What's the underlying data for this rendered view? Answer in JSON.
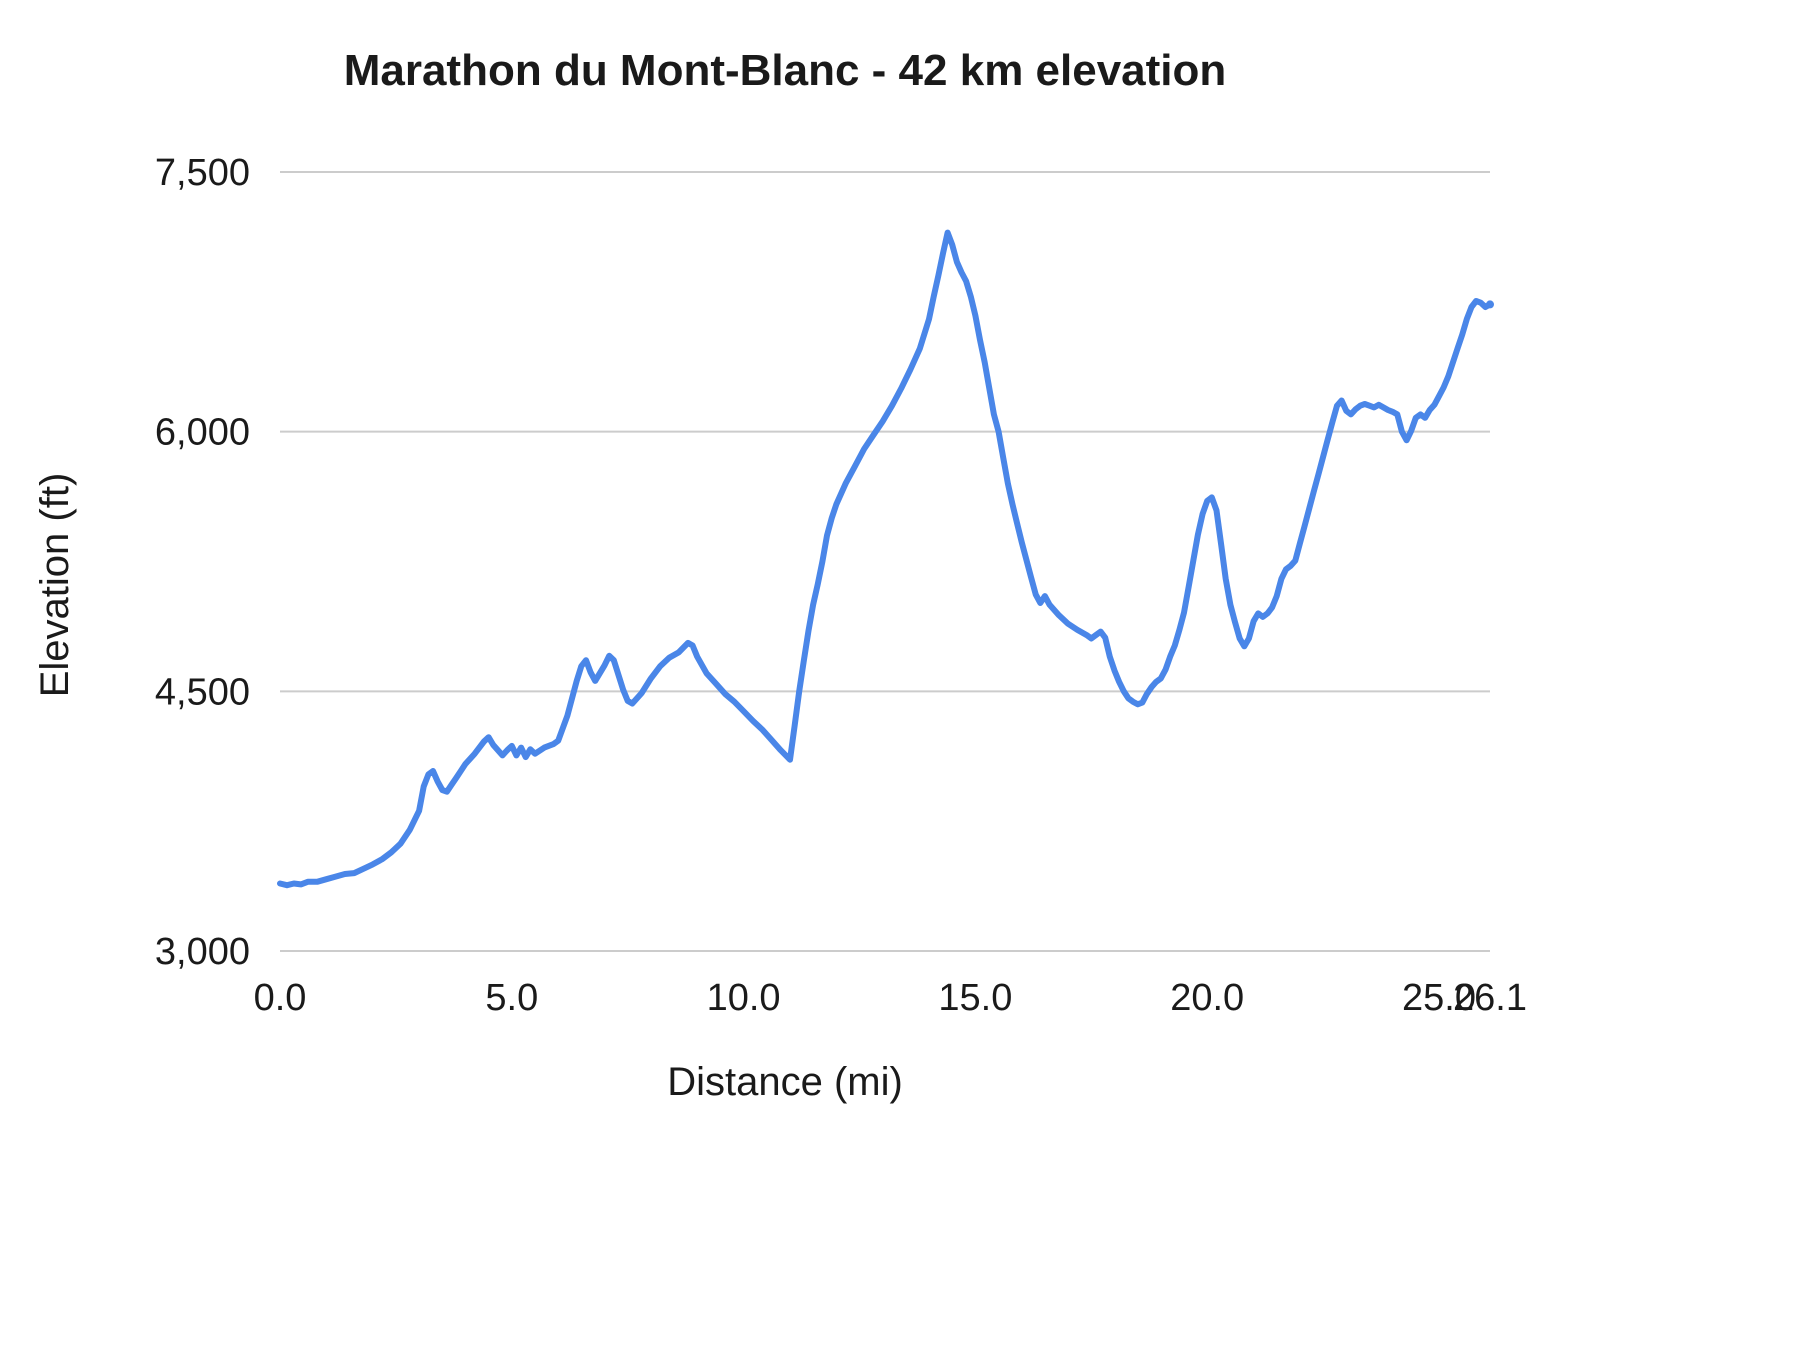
{
  "page": {
    "background_color": "#ffffff",
    "text_color": "#1a1a1a"
  },
  "chart_data": {
    "type": "line",
    "title": "Marathon du Mont-Blanc - 42 km elevation",
    "xlabel": "Distance (mi)",
    "ylabel": "Elevation (ft)",
    "xlim": [
      0,
      26.1
    ],
    "ylim": [
      3000,
      7500
    ],
    "grid": true,
    "legend_position": "none",
    "line_color": "#4a86e8",
    "grid_color": "#cccccc",
    "x_ticks": [
      {
        "value": 0,
        "label": "0.0"
      },
      {
        "value": 5,
        "label": "5.0"
      },
      {
        "value": 10,
        "label": "10.0"
      },
      {
        "value": 15,
        "label": "15.0"
      },
      {
        "value": 20,
        "label": "20.0"
      },
      {
        "value": 25,
        "label": "25.0"
      },
      {
        "value": 26.1,
        "label": "26.1"
      }
    ],
    "y_ticks": [
      {
        "value": 3000,
        "label": "3,000"
      },
      {
        "value": 4500,
        "label": "4,500"
      },
      {
        "value": 6000,
        "label": "6,000"
      },
      {
        "value": 7500,
        "label": "7,500"
      }
    ],
    "series": [
      {
        "name": "Elevation (ft)",
        "points": [
          [
            0,
            3390
          ],
          [
            0.15,
            3380
          ],
          [
            0.3,
            3390
          ],
          [
            0.45,
            3385
          ],
          [
            0.6,
            3400
          ],
          [
            0.8,
            3400
          ],
          [
            1,
            3415
          ],
          [
            1.2,
            3430
          ],
          [
            1.4,
            3445
          ],
          [
            1.6,
            3450
          ],
          [
            1.8,
            3475
          ],
          [
            2,
            3500
          ],
          [
            2.2,
            3530
          ],
          [
            2.4,
            3570
          ],
          [
            2.6,
            3620
          ],
          [
            2.8,
            3700
          ],
          [
            3,
            3810
          ],
          [
            3.1,
            3950
          ],
          [
            3.2,
            4020
          ],
          [
            3.3,
            4040
          ],
          [
            3.4,
            3980
          ],
          [
            3.5,
            3930
          ],
          [
            3.6,
            3920
          ],
          [
            3.7,
            3960
          ],
          [
            3.8,
            4000
          ],
          [
            3.9,
            4040
          ],
          [
            4,
            4080
          ],
          [
            4.2,
            4140
          ],
          [
            4.4,
            4210
          ],
          [
            4.5,
            4235
          ],
          [
            4.6,
            4190
          ],
          [
            4.8,
            4130
          ],
          [
            4.9,
            4160
          ],
          [
            5,
            4185
          ],
          [
            5.1,
            4130
          ],
          [
            5.2,
            4175
          ],
          [
            5.3,
            4120
          ],
          [
            5.4,
            4165
          ],
          [
            5.5,
            4140
          ],
          [
            5.7,
            4175
          ],
          [
            5.9,
            4195
          ],
          [
            6,
            4215
          ],
          [
            6.2,
            4360
          ],
          [
            6.4,
            4560
          ],
          [
            6.5,
            4645
          ],
          [
            6.6,
            4680
          ],
          [
            6.7,
            4610
          ],
          [
            6.8,
            4560
          ],
          [
            7,
            4650
          ],
          [
            7.1,
            4705
          ],
          [
            7.2,
            4680
          ],
          [
            7.4,
            4510
          ],
          [
            7.5,
            4445
          ],
          [
            7.6,
            4430
          ],
          [
            7.8,
            4490
          ],
          [
            8,
            4575
          ],
          [
            8.2,
            4645
          ],
          [
            8.4,
            4695
          ],
          [
            8.6,
            4725
          ],
          [
            8.8,
            4780
          ],
          [
            8.9,
            4765
          ],
          [
            9,
            4700
          ],
          [
            9.2,
            4605
          ],
          [
            9.4,
            4545
          ],
          [
            9.6,
            4485
          ],
          [
            9.8,
            4440
          ],
          [
            10,
            4385
          ],
          [
            10.2,
            4330
          ],
          [
            10.4,
            4280
          ],
          [
            10.6,
            4220
          ],
          [
            10.8,
            4160
          ],
          [
            11,
            4105
          ],
          [
            11.1,
            4300
          ],
          [
            11.2,
            4500
          ],
          [
            11.3,
            4680
          ],
          [
            11.4,
            4850
          ],
          [
            11.5,
            5000
          ],
          [
            11.6,
            5120
          ],
          [
            11.7,
            5250
          ],
          [
            11.8,
            5400
          ],
          [
            11.9,
            5500
          ],
          [
            12,
            5580
          ],
          [
            12.2,
            5700
          ],
          [
            12.4,
            5800
          ],
          [
            12.6,
            5900
          ],
          [
            12.8,
            5980
          ],
          [
            13,
            6060
          ],
          [
            13.2,
            6150
          ],
          [
            13.4,
            6250
          ],
          [
            13.6,
            6360
          ],
          [
            13.8,
            6480
          ],
          [
            14,
            6650
          ],
          [
            14.1,
            6780
          ],
          [
            14.2,
            6900
          ],
          [
            14.3,
            7030
          ],
          [
            14.4,
            7150
          ],
          [
            14.5,
            7080
          ],
          [
            14.6,
            6980
          ],
          [
            14.7,
            6920
          ],
          [
            14.8,
            6870
          ],
          [
            14.9,
            6780
          ],
          [
            15,
            6670
          ],
          [
            15.1,
            6530
          ],
          [
            15.2,
            6400
          ],
          [
            15.3,
            6250
          ],
          [
            15.4,
            6100
          ],
          [
            15.5,
            6000
          ],
          [
            15.6,
            5850
          ],
          [
            15.7,
            5700
          ],
          [
            15.8,
            5580
          ],
          [
            15.9,
            5470
          ],
          [
            16,
            5360
          ],
          [
            16.1,
            5260
          ],
          [
            16.2,
            5160
          ],
          [
            16.3,
            5060
          ],
          [
            16.4,
            5010
          ],
          [
            16.5,
            5050
          ],
          [
            16.6,
            5000
          ],
          [
            16.8,
            4940
          ],
          [
            17,
            4890
          ],
          [
            17.2,
            4855
          ],
          [
            17.4,
            4825
          ],
          [
            17.5,
            4805
          ],
          [
            17.6,
            4825
          ],
          [
            17.7,
            4845
          ],
          [
            17.8,
            4810
          ],
          [
            17.9,
            4700
          ],
          [
            18,
            4620
          ],
          [
            18.1,
            4555
          ],
          [
            18.2,
            4500
          ],
          [
            18.3,
            4460
          ],
          [
            18.4,
            4440
          ],
          [
            18.5,
            4425
          ],
          [
            18.6,
            4435
          ],
          [
            18.7,
            4485
          ],
          [
            18.8,
            4525
          ],
          [
            18.9,
            4555
          ],
          [
            19,
            4575
          ],
          [
            19.1,
            4625
          ],
          [
            19.2,
            4700
          ],
          [
            19.3,
            4765
          ],
          [
            19.4,
            4855
          ],
          [
            19.5,
            4955
          ],
          [
            19.6,
            5105
          ],
          [
            19.7,
            5255
          ],
          [
            19.8,
            5405
          ],
          [
            19.9,
            5525
          ],
          [
            20,
            5600
          ],
          [
            20.1,
            5620
          ],
          [
            20.2,
            5545
          ],
          [
            20.3,
            5350
          ],
          [
            20.4,
            5150
          ],
          [
            20.5,
            5000
          ],
          [
            20.6,
            4900
          ],
          [
            20.7,
            4805
          ],
          [
            20.8,
            4760
          ],
          [
            20.9,
            4805
          ],
          [
            21,
            4905
          ],
          [
            21.1,
            4950
          ],
          [
            21.2,
            4930
          ],
          [
            21.3,
            4950
          ],
          [
            21.4,
            4985
          ],
          [
            21.5,
            5050
          ],
          [
            21.6,
            5150
          ],
          [
            21.7,
            5205
          ],
          [
            21.8,
            5225
          ],
          [
            21.9,
            5255
          ],
          [
            22,
            5355
          ],
          [
            22.1,
            5455
          ],
          [
            22.2,
            5555
          ],
          [
            22.3,
            5655
          ],
          [
            22.4,
            5755
          ],
          [
            22.5,
            5855
          ],
          [
            22.6,
            5955
          ],
          [
            22.7,
            6055
          ],
          [
            22.8,
            6150
          ],
          [
            22.9,
            6180
          ],
          [
            23,
            6120
          ],
          [
            23.1,
            6100
          ],
          [
            23.2,
            6130
          ],
          [
            23.3,
            6150
          ],
          [
            23.4,
            6160
          ],
          [
            23.5,
            6150
          ],
          [
            23.6,
            6140
          ],
          [
            23.7,
            6155
          ],
          [
            23.8,
            6140
          ],
          [
            23.9,
            6125
          ],
          [
            24,
            6115
          ],
          [
            24.1,
            6100
          ],
          [
            24.2,
            6000
          ],
          [
            24.3,
            5950
          ],
          [
            24.4,
            6005
          ],
          [
            24.5,
            6080
          ],
          [
            24.6,
            6100
          ],
          [
            24.7,
            6080
          ],
          [
            24.8,
            6125
          ],
          [
            24.9,
            6155
          ],
          [
            25,
            6205
          ],
          [
            25.1,
            6255
          ],
          [
            25.2,
            6320
          ],
          [
            25.3,
            6400
          ],
          [
            25.4,
            6480
          ],
          [
            25.5,
            6560
          ],
          [
            25.6,
            6650
          ],
          [
            25.7,
            6720
          ],
          [
            25.8,
            6755
          ],
          [
            25.9,
            6745
          ],
          [
            26,
            6720
          ],
          [
            26.1,
            6735
          ]
        ]
      }
    ]
  }
}
